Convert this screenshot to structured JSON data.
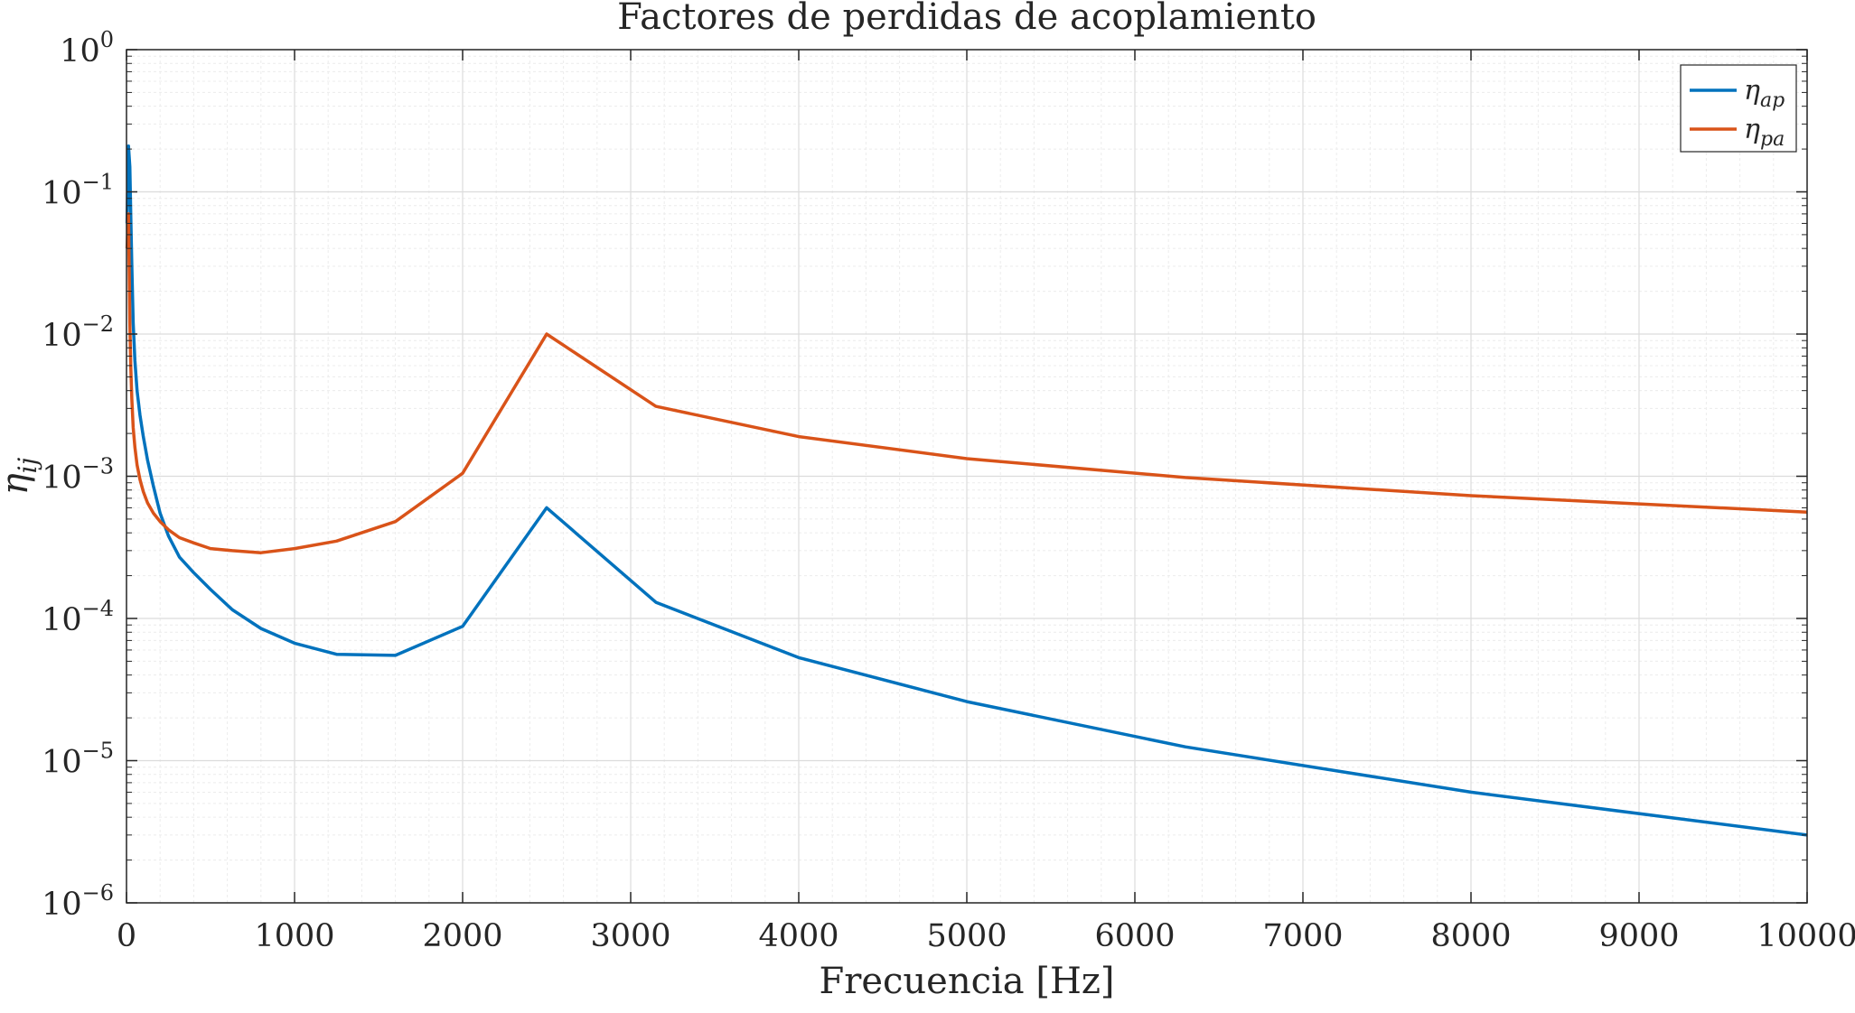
{
  "chart_data": {
    "type": "line",
    "title": "Factores de perdidas de acoplamiento",
    "xlabel": "Frecuencia [Hz]",
    "ylabel": {
      "base": "η",
      "sub": "ij"
    },
    "xlim": [
      0,
      10000
    ],
    "ylim": [
      1e-06,
      1
    ],
    "yscale": "log",
    "grid": true,
    "minor_grid": true,
    "legend_position": "top-right",
    "x_ticks": [
      0,
      1000,
      2000,
      3000,
      4000,
      5000,
      6000,
      7000,
      8000,
      9000,
      10000
    ],
    "x_tick_labels": [
      "0",
      "1000",
      "2000",
      "3000",
      "4000",
      "5000",
      "6000",
      "7000",
      "8000",
      "9000",
      "10000"
    ],
    "y_ticks": [
      {
        "value": 1,
        "base": "10",
        "exp": "0"
      },
      {
        "value": 0.1,
        "base": "10",
        "exp": "−1"
      },
      {
        "value": 0.01,
        "base": "10",
        "exp": "−2"
      },
      {
        "value": 0.001,
        "base": "10",
        "exp": "−3"
      },
      {
        "value": 0.0001,
        "base": "10",
        "exp": "−4"
      },
      {
        "value": 1e-05,
        "base": "10",
        "exp": "−5"
      },
      {
        "value": 1e-06,
        "base": "10",
        "exp": "−6"
      }
    ],
    "series": [
      {
        "name": {
          "base": "η",
          "sub": "ap"
        },
        "color": "#0072BD",
        "x": [
          3,
          12,
          20,
          25,
          31.5,
          40,
          50,
          63,
          80,
          100,
          125,
          160,
          200,
          250,
          315,
          400,
          500,
          630,
          800,
          1000,
          1250,
          1600,
          2000,
          2500,
          3150,
          4000,
          5000,
          6300,
          8000,
          10000
        ],
        "y": [
          0.06,
          0.21,
          0.15,
          0.07,
          0.03,
          0.012,
          0.0065,
          0.004,
          0.0027,
          0.0019,
          0.0013,
          0.00085,
          0.00055,
          0.00038,
          0.00027,
          0.00021,
          0.00016,
          0.000115,
          8.5e-05,
          6.7e-05,
          5.6e-05,
          5.5e-05,
          8.8e-05,
          0.0006,
          0.00013,
          5.3e-05,
          2.6e-05,
          1.25e-05,
          6e-06,
          3e-06
        ]
      },
      {
        "name": {
          "base": "η",
          "sub": "pa"
        },
        "color": "#D95319",
        "x": [
          3,
          12,
          20,
          25,
          31.5,
          40,
          50,
          63,
          80,
          100,
          125,
          160,
          200,
          250,
          315,
          400,
          500,
          630,
          800,
          1000,
          1250,
          1600,
          2000,
          2500,
          3150,
          4000,
          5000,
          6300,
          8000,
          10000
        ],
        "y": [
          0.04,
          0.07,
          0.012,
          0.006,
          0.0035,
          0.0022,
          0.0016,
          0.0012,
          0.00095,
          0.00078,
          0.00065,
          0.00055,
          0.00048,
          0.00042,
          0.00037,
          0.00034,
          0.00031,
          0.0003,
          0.00029,
          0.00031,
          0.00035,
          0.00048,
          0.00105,
          0.01,
          0.0031,
          0.0019,
          0.00133,
          0.00098,
          0.00073,
          0.00056
        ]
      }
    ]
  }
}
